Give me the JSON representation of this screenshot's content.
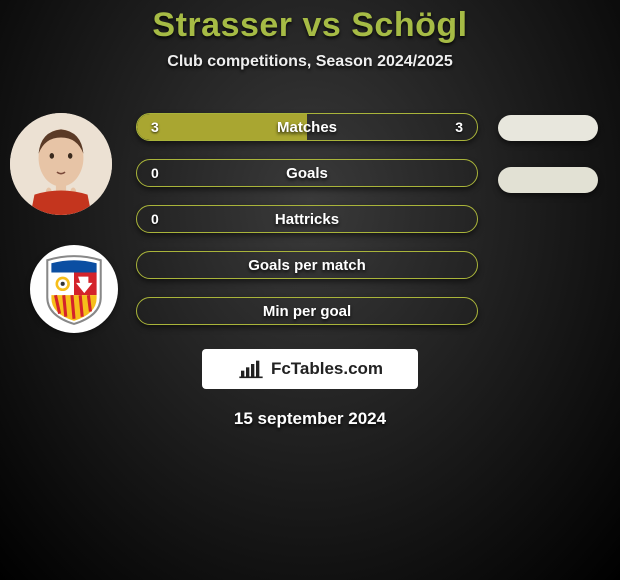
{
  "title": "Strasser vs Schögl",
  "subtitle": "Club competitions, Season 2024/2025",
  "brand": "FcTables.com",
  "date": "15 september 2024",
  "colors": {
    "accent": "#a6bb45",
    "bar_fill": "#a9a631",
    "bar_border": "#a9b43a",
    "pill1": "#e8e7dd",
    "pill2": "#e2e1d4",
    "text": "#ffffff"
  },
  "bars": [
    {
      "label": "Matches",
      "left": "3",
      "right": "3",
      "fill_pct": 50
    },
    {
      "label": "Goals",
      "left": "0",
      "right": "",
      "fill_pct": 0
    },
    {
      "label": "Hattricks",
      "left": "0",
      "right": "",
      "fill_pct": 0
    },
    {
      "label": "Goals per match",
      "left": "",
      "right": "",
      "fill_pct": 0
    },
    {
      "label": "Min per goal",
      "left": "",
      "right": "",
      "fill_pct": 0
    }
  ],
  "player": {
    "skin": "#e7c4a6",
    "hair": "#5a3a26",
    "shirt": "#c4351e"
  },
  "club_crest": {
    "shield_border": "#c0c0c0",
    "red": "#d4232b",
    "blue": "#0b4ea2",
    "yellow": "#f6be1a",
    "white": "#ffffff"
  }
}
